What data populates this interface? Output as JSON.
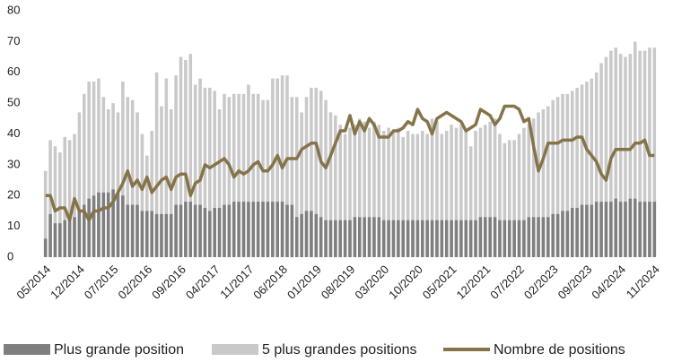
{
  "chart_data": {
    "type": "bar-line",
    "categories": [
      "05/2014",
      null,
      null,
      null,
      null,
      null,
      null,
      "12/2014",
      null,
      null,
      null,
      null,
      null,
      null,
      "07/2015",
      null,
      null,
      null,
      null,
      null,
      null,
      "02/2016",
      null,
      null,
      null,
      null,
      null,
      null,
      "09/2016",
      null,
      null,
      null,
      null,
      null,
      null,
      "04/2017",
      null,
      null,
      null,
      null,
      null,
      null,
      "11/2017",
      null,
      null,
      null,
      null,
      null,
      null,
      "06/2018",
      null,
      null,
      null,
      null,
      null,
      null,
      "01/2019",
      null,
      null,
      null,
      null,
      null,
      null,
      "08/2019",
      null,
      null,
      null,
      null,
      null,
      null,
      "03/2020",
      null,
      null,
      null,
      null,
      null,
      null,
      "10/2020",
      null,
      null,
      null,
      null,
      null,
      null,
      "05/2021",
      null,
      null,
      null,
      null,
      null,
      null,
      "12/2021",
      null,
      null,
      null,
      null,
      null,
      null,
      "07/2022",
      null,
      null,
      null,
      null,
      null,
      null,
      "02/2023",
      null,
      null,
      null,
      null,
      null,
      null,
      "09/2023",
      null,
      null,
      null,
      null,
      null,
      null,
      "04/2024",
      null,
      null,
      null,
      null,
      null,
      null,
      "11/2024"
    ],
    "series": [
      {
        "name": "Plus grande position",
        "type": "bar",
        "color": "#7f7f7f",
        "values": [
          6,
          14,
          11,
          11,
          12,
          12,
          13,
          15,
          17,
          19,
          20,
          21,
          21,
          21,
          22,
          21,
          20,
          17,
          17,
          17,
          15,
          15,
          15,
          14,
          14,
          14,
          14,
          17,
          17,
          18,
          18,
          17,
          17,
          16,
          15,
          16,
          16,
          17,
          17,
          18,
          18,
          18,
          18,
          18,
          18,
          18,
          18,
          18,
          18,
          18,
          17,
          17,
          13,
          14,
          15,
          15,
          14,
          13,
          12,
          12,
          12,
          12,
          12,
          12,
          13,
          13,
          13,
          13,
          13,
          13,
          12,
          12,
          12,
          12,
          12,
          12,
          12,
          12,
          12,
          12,
          12,
          12,
          12,
          12,
          12,
          12,
          12,
          12,
          12,
          12,
          13,
          13,
          13,
          13,
          12,
          12,
          12,
          12,
          12,
          12,
          13,
          13,
          13,
          13,
          13,
          14,
          14,
          15,
          15,
          16,
          16,
          17,
          17,
          17,
          18,
          18,
          18,
          18,
          19,
          18,
          18,
          19,
          19,
          18,
          18,
          18,
          18
        ]
      },
      {
        "name": "5 plus grandes positions",
        "type": "bar",
        "color": "#c9c9c9",
        "values": [
          28,
          38,
          36,
          34,
          39,
          38,
          40,
          47,
          53,
          57,
          57,
          58,
          52,
          48,
          50,
          47,
          57,
          52,
          51,
          47,
          40,
          33,
          41,
          60,
          49,
          58,
          48,
          59,
          65,
          64,
          66,
          56,
          58,
          55,
          55,
          54,
          48,
          53,
          52,
          53,
          53,
          53,
          56,
          53,
          53,
          51,
          51,
          58,
          58,
          59,
          59,
          52,
          52,
          47,
          52,
          55,
          55,
          54,
          51,
          47,
          46,
          43,
          40,
          42,
          43,
          45,
          44,
          42,
          44,
          43,
          41,
          42,
          41,
          42,
          39,
          41,
          40,
          40,
          41,
          40,
          45,
          44,
          40,
          41,
          43,
          42,
          43,
          41,
          36,
          41,
          42,
          43,
          44,
          45,
          40,
          37,
          38,
          38,
          40,
          42,
          43,
          45,
          47,
          48,
          49,
          51,
          52,
          53,
          53,
          54,
          55,
          56,
          57,
          58,
          60,
          63,
          65,
          67,
          68,
          66,
          65,
          66,
          70,
          67,
          67,
          68,
          68
        ]
      },
      {
        "name": "Nombre de positions",
        "type": "line",
        "color": "#857449",
        "values": [
          20,
          20,
          15,
          16,
          16,
          12,
          19,
          15,
          15,
          12,
          15,
          15,
          16,
          16,
          18,
          21,
          24,
          28,
          23,
          25,
          22,
          26,
          21,
          23,
          25,
          26,
          22,
          26,
          27,
          27,
          20,
          24,
          25,
          30,
          29,
          30,
          31,
          32,
          30,
          26,
          28,
          27,
          28,
          30,
          31,
          28,
          28,
          30,
          33,
          29,
          32,
          32,
          32,
          35,
          36,
          37,
          37,
          31,
          29,
          33,
          37,
          41,
          41,
          46,
          40,
          44,
          41,
          45,
          43,
          39,
          39,
          39,
          41,
          41,
          42,
          44,
          43,
          48,
          45,
          44,
          40,
          45,
          46,
          47,
          46,
          45,
          44,
          41,
          42,
          43,
          48,
          47,
          46,
          43,
          45,
          49,
          49,
          49,
          48,
          44,
          45,
          36,
          28,
          32,
          37,
          37,
          37,
          38,
          38,
          38,
          39,
          39,
          35,
          33,
          31,
          27,
          25,
          32,
          35,
          35,
          35,
          35,
          37,
          37,
          38,
          33,
          33
        ]
      }
    ],
    "ylim": [
      0,
      80
    ],
    "yticks": [
      0,
      10,
      20,
      30,
      40,
      50,
      60,
      70,
      80
    ],
    "grid": false,
    "legend": "bottom"
  }
}
